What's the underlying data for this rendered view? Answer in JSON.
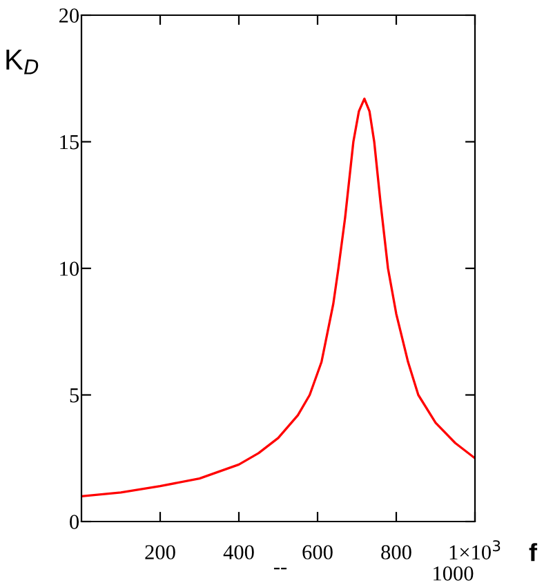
{
  "chart_data": {
    "type": "line",
    "ylabel": "K$_{D}$",
    "xlabel": "f",
    "annotations": [
      "--",
      "1000"
    ],
    "x": [
      0,
      100,
      200,
      300,
      400,
      450,
      500,
      550,
      580,
      610,
      640,
      653,
      670,
      691,
      705,
      719,
      732,
      744,
      760,
      779,
      800,
      830,
      856,
      900,
      950,
      1000
    ],
    "series": [
      {
        "color": "#ff0000",
        "values": [
          1.0,
          1.15,
          1.4,
          1.7,
          2.25,
          2.7,
          3.3,
          4.2,
          5.0,
          6.3,
          8.6,
          10.0,
          12.0,
          15.0,
          16.2,
          16.7,
          16.2,
          15.0,
          12.6,
          10.0,
          8.2,
          6.3,
          5.0,
          3.9,
          3.1,
          2.5
        ]
      }
    ],
    "xlim": [
      0,
      1000
    ],
    "ylim": [
      0,
      20
    ],
    "xticks": [
      200,
      400,
      600,
      800,
      {
        "value": 1000,
        "label": "1×10$^{3}$"
      }
    ],
    "yticks": [
      0,
      5,
      10,
      15,
      20
    ],
    "grid": false,
    "legend": false,
    "marker": "none",
    "line_style": "solid"
  }
}
